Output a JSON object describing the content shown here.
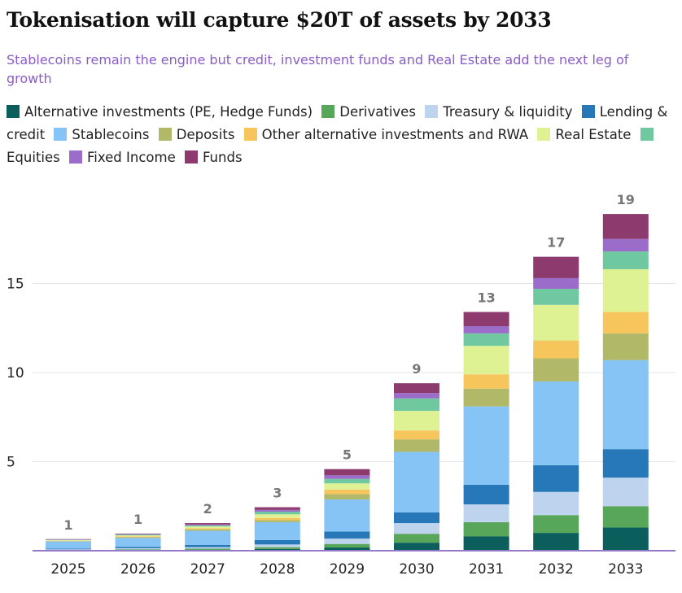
{
  "title": "Tokenisation will capture $20T of assets by 2033",
  "subtitle": "Stablecoins remain the engine but credit, investment funds and Real Estate add the next leg of growth",
  "colors": {
    "alt_investments": "#0c5e5c",
    "derivatives": "#58a65a",
    "treasury": "#bed4ee",
    "lending": "#2678b8",
    "stablecoins": "#85c4f4",
    "deposits": "#b1b868",
    "other_alt": "#f6c65c",
    "real_estate": "#def193",
    "equities": "#6fc8a0",
    "fixed_income": "#9b6cc9",
    "funds": "#8d3a6e",
    "axis": "#9678c8",
    "grid": "#e6e6e6",
    "total_label": "#777777"
  },
  "chart_data": {
    "type": "bar",
    "stacked": true,
    "title": "Tokenisation will capture $20T of assets by 2033",
    "xlabel": "",
    "ylabel": "",
    "ylim": [
      0,
      20
    ],
    "yticks": [
      5,
      10,
      15
    ],
    "grid": true,
    "legend_position": "top",
    "categories": [
      "2025",
      "2026",
      "2027",
      "2028",
      "2029",
      "2030",
      "2031",
      "2032",
      "2033"
    ],
    "totals": [
      "1",
      "1",
      "2",
      "3",
      "5",
      "9",
      "13",
      "17",
      "19"
    ],
    "series": [
      {
        "name": "Alternative investments (PE, Hedge Funds)",
        "key": "alt_investments",
        "values": [
          0.02,
          0.04,
          0.06,
          0.1,
          0.18,
          0.45,
          0.8,
          1.0,
          1.3
        ]
      },
      {
        "name": "Derivatives",
        "key": "derivatives",
        "values": [
          0.02,
          0.04,
          0.06,
          0.1,
          0.2,
          0.5,
          0.8,
          1.0,
          1.2
        ]
      },
      {
        "name": "Treasury & liquidity",
        "key": "treasury",
        "values": [
          0.04,
          0.06,
          0.08,
          0.15,
          0.3,
          0.6,
          1.0,
          1.3,
          1.6
        ]
      },
      {
        "name": "Lending & credit",
        "key": "lending",
        "values": [
          0.04,
          0.08,
          0.12,
          0.25,
          0.4,
          0.6,
          1.1,
          1.5,
          1.6
        ]
      },
      {
        "name": "Stablecoins",
        "key": "stablecoins",
        "values": [
          0.4,
          0.5,
          0.8,
          1.0,
          1.8,
          3.4,
          4.4,
          4.7,
          5.0
        ]
      },
      {
        "name": "Deposits",
        "key": "deposits",
        "values": [
          0.02,
          0.05,
          0.08,
          0.12,
          0.3,
          0.7,
          1.0,
          1.3,
          1.5
        ]
      },
      {
        "name": "Other alternative investments and RWA",
        "key": "other_alt",
        "values": [
          0.02,
          0.04,
          0.06,
          0.12,
          0.25,
          0.5,
          0.8,
          1.0,
          1.2
        ]
      },
      {
        "name": "Real Estate",
        "key": "real_estate",
        "values": [
          0.03,
          0.05,
          0.1,
          0.2,
          0.35,
          1.1,
          1.6,
          2.0,
          2.4
        ]
      },
      {
        "name": "Equities",
        "key": "equities",
        "values": [
          0.02,
          0.04,
          0.06,
          0.15,
          0.25,
          0.7,
          0.7,
          0.9,
          1.0
        ]
      },
      {
        "name": "Fixed Income",
        "key": "fixed_income",
        "values": [
          0.02,
          0.03,
          0.05,
          0.1,
          0.2,
          0.3,
          0.4,
          0.6,
          0.7
        ]
      },
      {
        "name": "Funds",
        "key": "funds",
        "values": [
          0.02,
          0.03,
          0.08,
          0.15,
          0.35,
          0.55,
          0.8,
          1.2,
          1.4
        ]
      }
    ]
  }
}
